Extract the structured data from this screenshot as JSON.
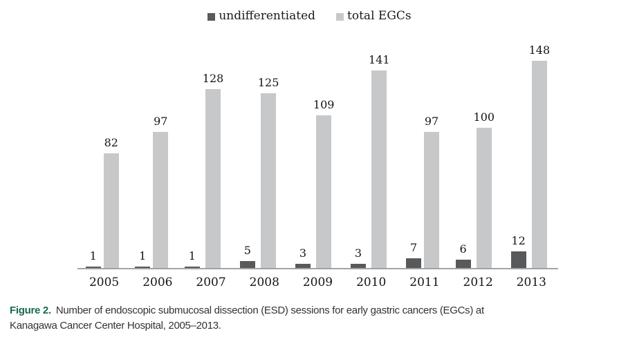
{
  "chart_data": {
    "type": "bar",
    "title": "",
    "xlabel": "",
    "ylabel": "",
    "categories": [
      "2005",
      "2006",
      "2007",
      "2008",
      "2009",
      "2010",
      "2011",
      "2012",
      "2013"
    ],
    "series": [
      {
        "name": "undifferentiated",
        "color": "#58595b",
        "values": [
          1,
          1,
          1,
          5,
          3,
          3,
          7,
          6,
          12
        ]
      },
      {
        "name": "total EGCs",
        "color": "#c7c8ca",
        "values": [
          82,
          97,
          128,
          125,
          109,
          141,
          97,
          100,
          148
        ]
      }
    ],
    "ylim": [
      0,
      148
    ],
    "grid": false,
    "legend_position": "top",
    "value_labels": true
  },
  "legend": {
    "items": [
      {
        "label": "undifferentiated",
        "color": "#58595b"
      },
      {
        "label": "total EGCs",
        "color": "#c7c8ca"
      }
    ]
  },
  "caption": {
    "label": "Figure 2.",
    "label_color": "#17694f",
    "text": "Number of endoscopic submucosal dissection (ESD) sessions for early gastric cancers (EGCs) at Kanagawa Cancer Center Hospital, 2005–2013."
  }
}
